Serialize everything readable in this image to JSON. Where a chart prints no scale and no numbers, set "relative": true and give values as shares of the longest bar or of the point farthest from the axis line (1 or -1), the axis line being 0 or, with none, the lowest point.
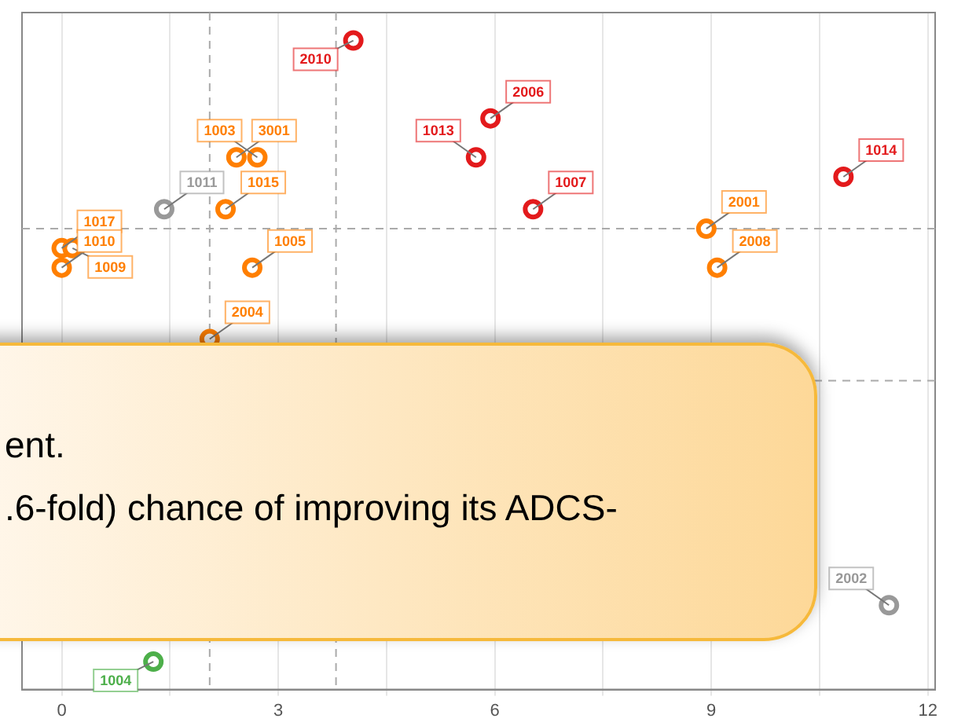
{
  "chart_data": {
    "type": "scatter",
    "relative": true,
    "grid": "x",
    "legend": false,
    "marker": "circle",
    "xlim": [
      -0.55,
      12.1
    ],
    "xticks": [
      0,
      {
        "value": 1.5,
        "label": null
      },
      3,
      {
        "value": 4.5,
        "label": null
      },
      6,
      {
        "value": 7.5,
        "label": null
      },
      9,
      {
        "value": 10.5,
        "label": null
      },
      12
    ],
    "series": [
      {
        "color": "#e31a1c",
        "x": [
          4.04,
          5.74,
          5.94,
          6.53,
          10.83
        ],
        "values": [
          1.0,
          0.82,
          0.88,
          0.74,
          0.79
        ]
      },
      {
        "color": "#ff7f00",
        "x": [
          2.42,
          2.71,
          2.27,
          0.0,
          0.15,
          0.0,
          2.64,
          2.05,
          8.93,
          9.08
        ],
        "values": [
          0.82,
          0.82,
          0.74,
          0.68,
          0.68,
          0.65,
          0.65,
          0.54,
          0.71,
          0.65
        ]
      },
      {
        "color": "#999999",
        "x": [
          1.42,
          11.46
        ],
        "values": [
          0.74,
          0.13
        ]
      },
      {
        "color": "#4daf4a",
        "x": [
          1.27
        ],
        "values": [
          0.043
        ]
      }
    ],
    "ref_lines": [
      {
        "axis": "x",
        "value": 2.05,
        "color": "#aaaaaa",
        "line_style": "dashed"
      },
      {
        "axis": "x",
        "value": 3.8,
        "color": "#aaaaaa",
        "line_style": "dashed"
      },
      {
        "axis": "y",
        "value": 0.71,
        "color": "#aaaaaa",
        "line_style": "dashed"
      },
      {
        "axis": "y",
        "value": 0.476,
        "color": "#aaaaaa",
        "line_style": "dashed"
      }
    ],
    "annotations": [
      {
        "text": "2010",
        "x": 4.04,
        "y": 1.0
      },
      {
        "text": "1013",
        "x": 5.74,
        "y": 0.82
      },
      {
        "text": "2006",
        "x": 5.94,
        "y": 0.88
      },
      {
        "text": "1007",
        "x": 6.53,
        "y": 0.74
      },
      {
        "text": "1014",
        "x": 10.83,
        "y": 0.79
      },
      {
        "text": "3001",
        "x": 2.42,
        "y": 0.82
      },
      {
        "text": "1003",
        "x": 2.71,
        "y": 0.82
      },
      {
        "text": "1015",
        "x": 2.27,
        "y": 0.74
      },
      {
        "text": "1017",
        "x": 0.0,
        "y": 0.68
      },
      {
        "text": "1009",
        "x": 0.15,
        "y": 0.68
      },
      {
        "text": "1010",
        "x": 0.0,
        "y": 0.65
      },
      {
        "text": "1005",
        "x": 2.64,
        "y": 0.65
      },
      {
        "text": "2004",
        "x": 2.05,
        "y": 0.54
      },
      {
        "text": "2001",
        "x": 8.93,
        "y": 0.71
      },
      {
        "text": "2008",
        "x": 9.08,
        "y": 0.65
      },
      {
        "text": "1011",
        "x": 1.42,
        "y": 0.74
      },
      {
        "text": "2002",
        "x": 11.46,
        "y": 0.13
      },
      {
        "text": "1004",
        "x": 1.27,
        "y": 0.043
      },
      "ent.",
      ".6-fold) chance of improving its ADCS-"
    ]
  }
}
